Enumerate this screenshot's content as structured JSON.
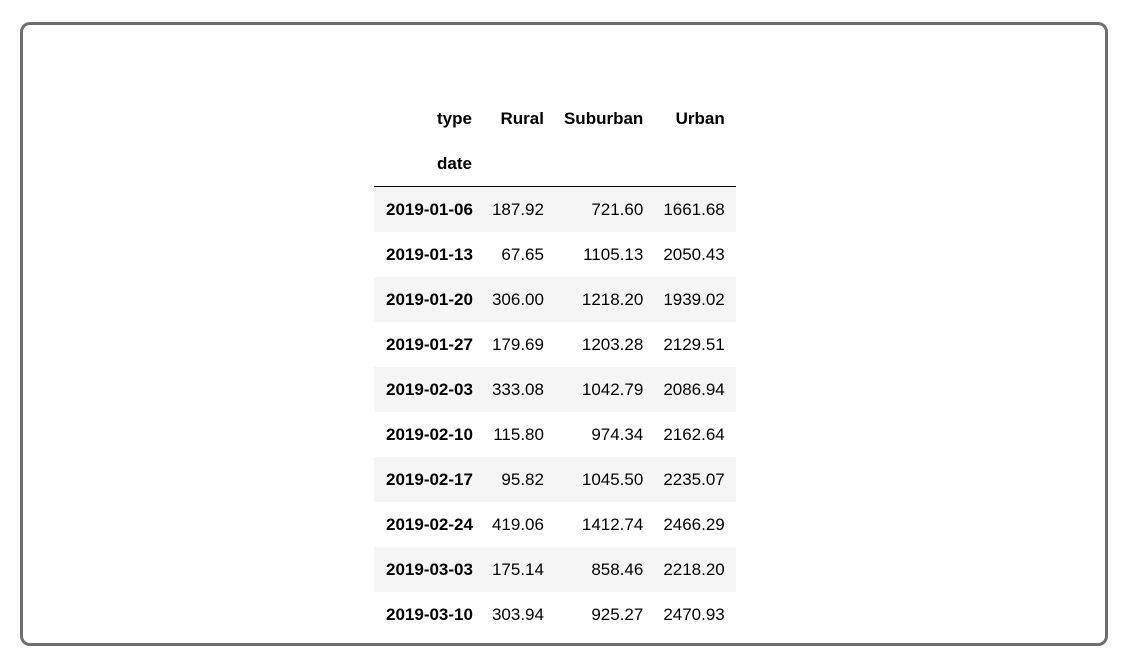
{
  "table": {
    "columns_name": "type",
    "index_name": "date",
    "columns": [
      "Rural",
      "Suburban",
      "Urban"
    ],
    "rows": [
      {
        "date": "2019-01-06",
        "values": [
          "187.92",
          "721.60",
          "1661.68"
        ]
      },
      {
        "date": "2019-01-13",
        "values": [
          "67.65",
          "1105.13",
          "2050.43"
        ]
      },
      {
        "date": "2019-01-20",
        "values": [
          "306.00",
          "1218.20",
          "1939.02"
        ]
      },
      {
        "date": "2019-01-27",
        "values": [
          "179.69",
          "1203.28",
          "2129.51"
        ]
      },
      {
        "date": "2019-02-03",
        "values": [
          "333.08",
          "1042.79",
          "2086.94"
        ]
      },
      {
        "date": "2019-02-10",
        "values": [
          "115.80",
          "974.34",
          "2162.64"
        ]
      },
      {
        "date": "2019-02-17",
        "values": [
          "95.82",
          "1045.50",
          "2235.07"
        ]
      },
      {
        "date": "2019-02-24",
        "values": [
          "419.06",
          "1412.74",
          "2466.29"
        ]
      },
      {
        "date": "2019-03-03",
        "values": [
          "175.14",
          "858.46",
          "2218.20"
        ]
      },
      {
        "date": "2019-03-10",
        "values": [
          "303.94",
          "925.27",
          "2470.93"
        ]
      }
    ]
  }
}
